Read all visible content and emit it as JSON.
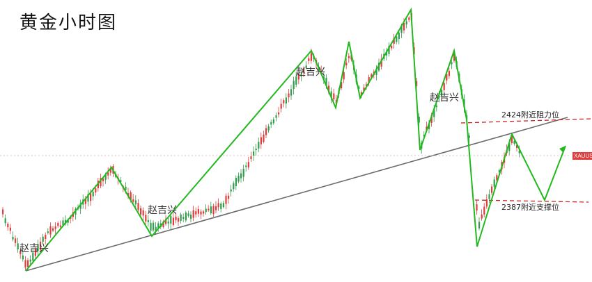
{
  "title": "黄金小时图",
  "chart_data": {
    "type": "candlestick",
    "title": "黄金小时图",
    "symbol": "XAUUSD",
    "colors": {
      "bull": "#e23b3b",
      "bear": "#2f9d4a",
      "wave": "#22b91f",
      "trend": "#6b6b6b",
      "level": "#cc2222",
      "tag": "#e23b3b"
    },
    "levels": [
      {
        "value": 2424,
        "label": "2424附近阻力位"
      },
      {
        "value": 2387,
        "label": "2387附近支撑位"
      }
    ],
    "watermarks": [
      "赵吉兴",
      "赵吉兴",
      "赵吉兴",
      "赵吉兴"
    ]
  }
}
